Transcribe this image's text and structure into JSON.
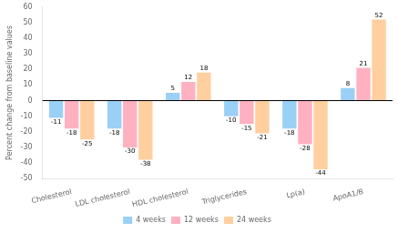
{
  "chart_data": {
    "type": "bar",
    "categories": [
      "Cholesterol",
      "LDL cholesterol",
      "HDL cholesterol",
      "Triglycerides",
      "Lp(a)",
      "ApoA1/B"
    ],
    "series": [
      {
        "name": "4 weeks",
        "values": [
          -11,
          -18,
          5,
          -10,
          -18,
          8
        ]
      },
      {
        "name": "12 weeks",
        "values": [
          -18,
          -30,
          12,
          -15,
          -28,
          21
        ]
      },
      {
        "name": "24 weeks",
        "values": [
          -25,
          -38,
          18,
          -21,
          -44,
          52
        ]
      }
    ],
    "ylabel": "Percent change from baseline values",
    "ylim": [
      -50,
      60
    ],
    "yticks": [
      -50,
      -40,
      -30,
      -20,
      -10,
      0,
      10,
      20,
      30,
      40,
      50,
      60
    ],
    "data_labels": true,
    "grid": false,
    "legend": "bottom"
  }
}
